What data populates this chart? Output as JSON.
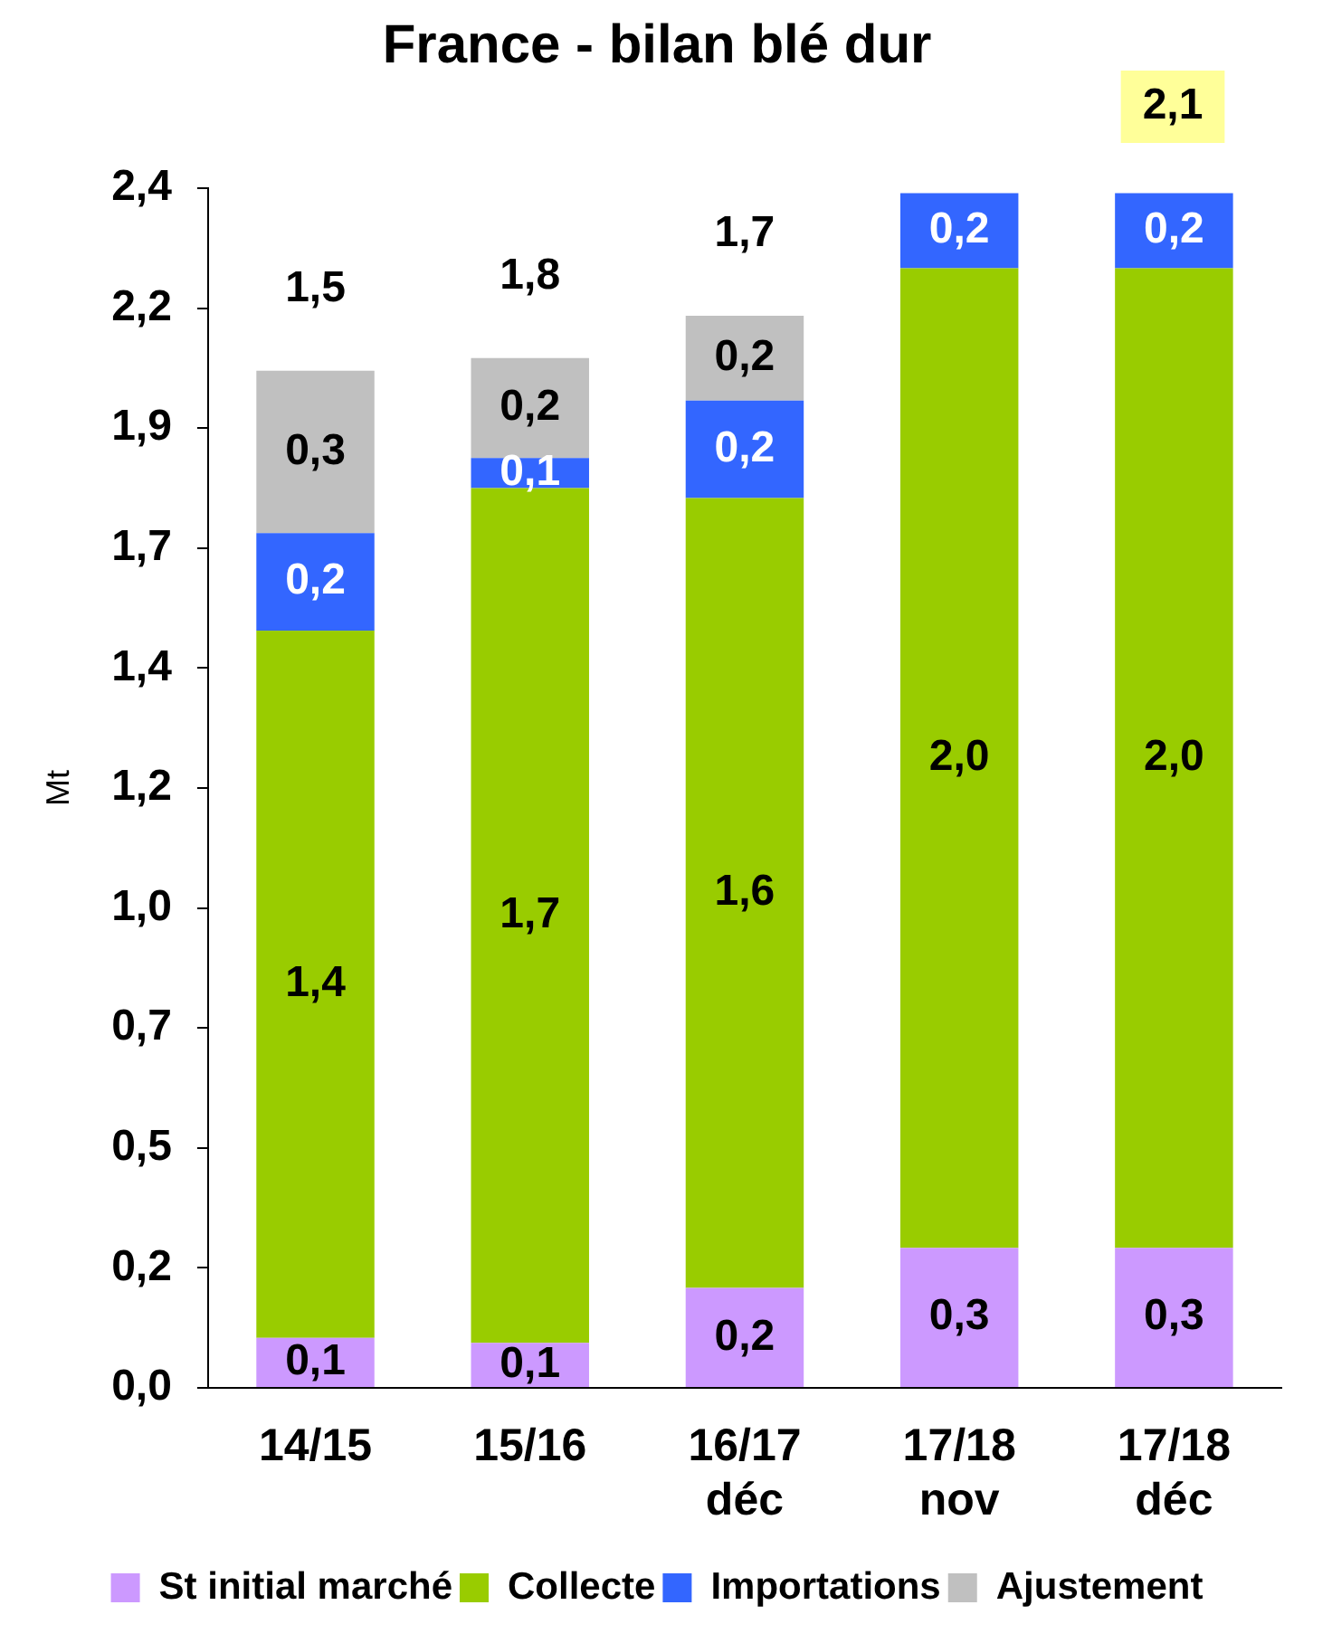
{
  "chart_data": {
    "type": "bar",
    "title": "France - bilan blé dur",
    "ylabel": "Mt",
    "stacked": true,
    "grid": false,
    "legend": "bottom",
    "categories": [
      "14/15",
      "15/16",
      "16/17\ndéc",
      "17/18\nnov",
      "17/18\ndéc"
    ],
    "series": [
      {
        "name": "St initial marché",
        "color": "#cc99ff",
        "values": [
          0.1,
          0.09,
          0.2,
          0.28,
          0.28
        ],
        "value_labels": [
          "0,1",
          "0,1",
          "0,2",
          "0,3",
          "0,3"
        ]
      },
      {
        "name": "Collecte",
        "color": "#99cc00",
        "values": [
          1.415,
          1.71,
          1.58,
          1.96,
          1.96
        ],
        "value_labels": [
          "1,4",
          "1,7",
          "1,6",
          "2,0",
          "2,0"
        ]
      },
      {
        "name": "Importations",
        "color": "#3366ff",
        "values": [
          0.195,
          0.06,
          0.195,
          0.15,
          0.15
        ],
        "value_labels": [
          "0,2",
          "0,1",
          "0,2",
          "0,2",
          "0,2"
        ]
      },
      {
        "name": "Ajustement",
        "color": "#c0c0c0",
        "values": [
          0.325,
          0.2,
          0.17,
          0,
          0
        ],
        "value_labels": [
          "0,3",
          "0,2",
          "0,2",
          null,
          null
        ]
      }
    ],
    "annotations": [
      "1,5",
      "1,8",
      "1,7",
      "2,1"
    ],
    "ylim": [
      0,
      2.4
    ],
    "yticks": [
      {
        "value": 0,
        "label": "0,0"
      },
      {
        "value": 0.24,
        "label": "0,2"
      },
      {
        "value": 0.48,
        "label": "0,5"
      },
      {
        "value": 0.72,
        "label": "0,7"
      },
      {
        "value": 0.96,
        "label": "1,0"
      },
      {
        "value": 1.2,
        "label": "1,2"
      },
      {
        "value": 1.44,
        "label": "1,4"
      },
      {
        "value": 1.68,
        "label": "1,7"
      },
      {
        "value": 1.92,
        "label": "1,9"
      },
      {
        "value": 2.16,
        "label": "2,2"
      },
      {
        "value": 2.4,
        "label": "2,4"
      }
    ]
  }
}
